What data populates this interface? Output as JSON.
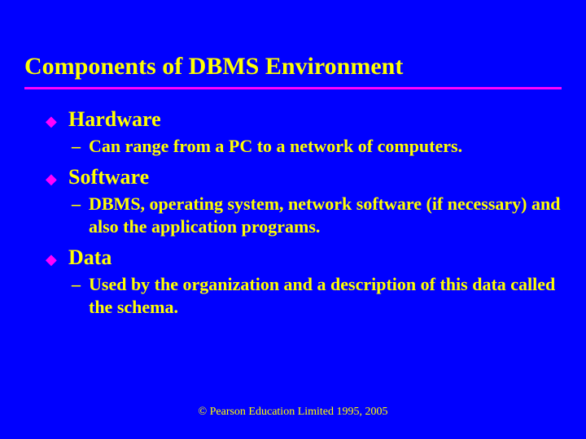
{
  "slide": {
    "title": "Components of DBMS Environment",
    "background_color": "#0000ff",
    "title_color": "#ffff00",
    "underline_color": "#ff00ff",
    "bullet_color": "#ff00ff",
    "text_color": "#ffff00",
    "title_fontsize": 30,
    "heading_fontsize": 26,
    "body_fontsize": 22,
    "footer_fontsize": 14,
    "items": [
      {
        "heading": "Hardware",
        "sub": "Can range from a PC to a network of computers."
      },
      {
        "heading": "Software",
        "sub": "DBMS, operating system, network software (if necessary) and also the application programs."
      },
      {
        "heading": "Data",
        "sub": "Used by the organization and a description of this data called the schema."
      }
    ],
    "footer": "© Pearson Education Limited 1995, 2005"
  }
}
